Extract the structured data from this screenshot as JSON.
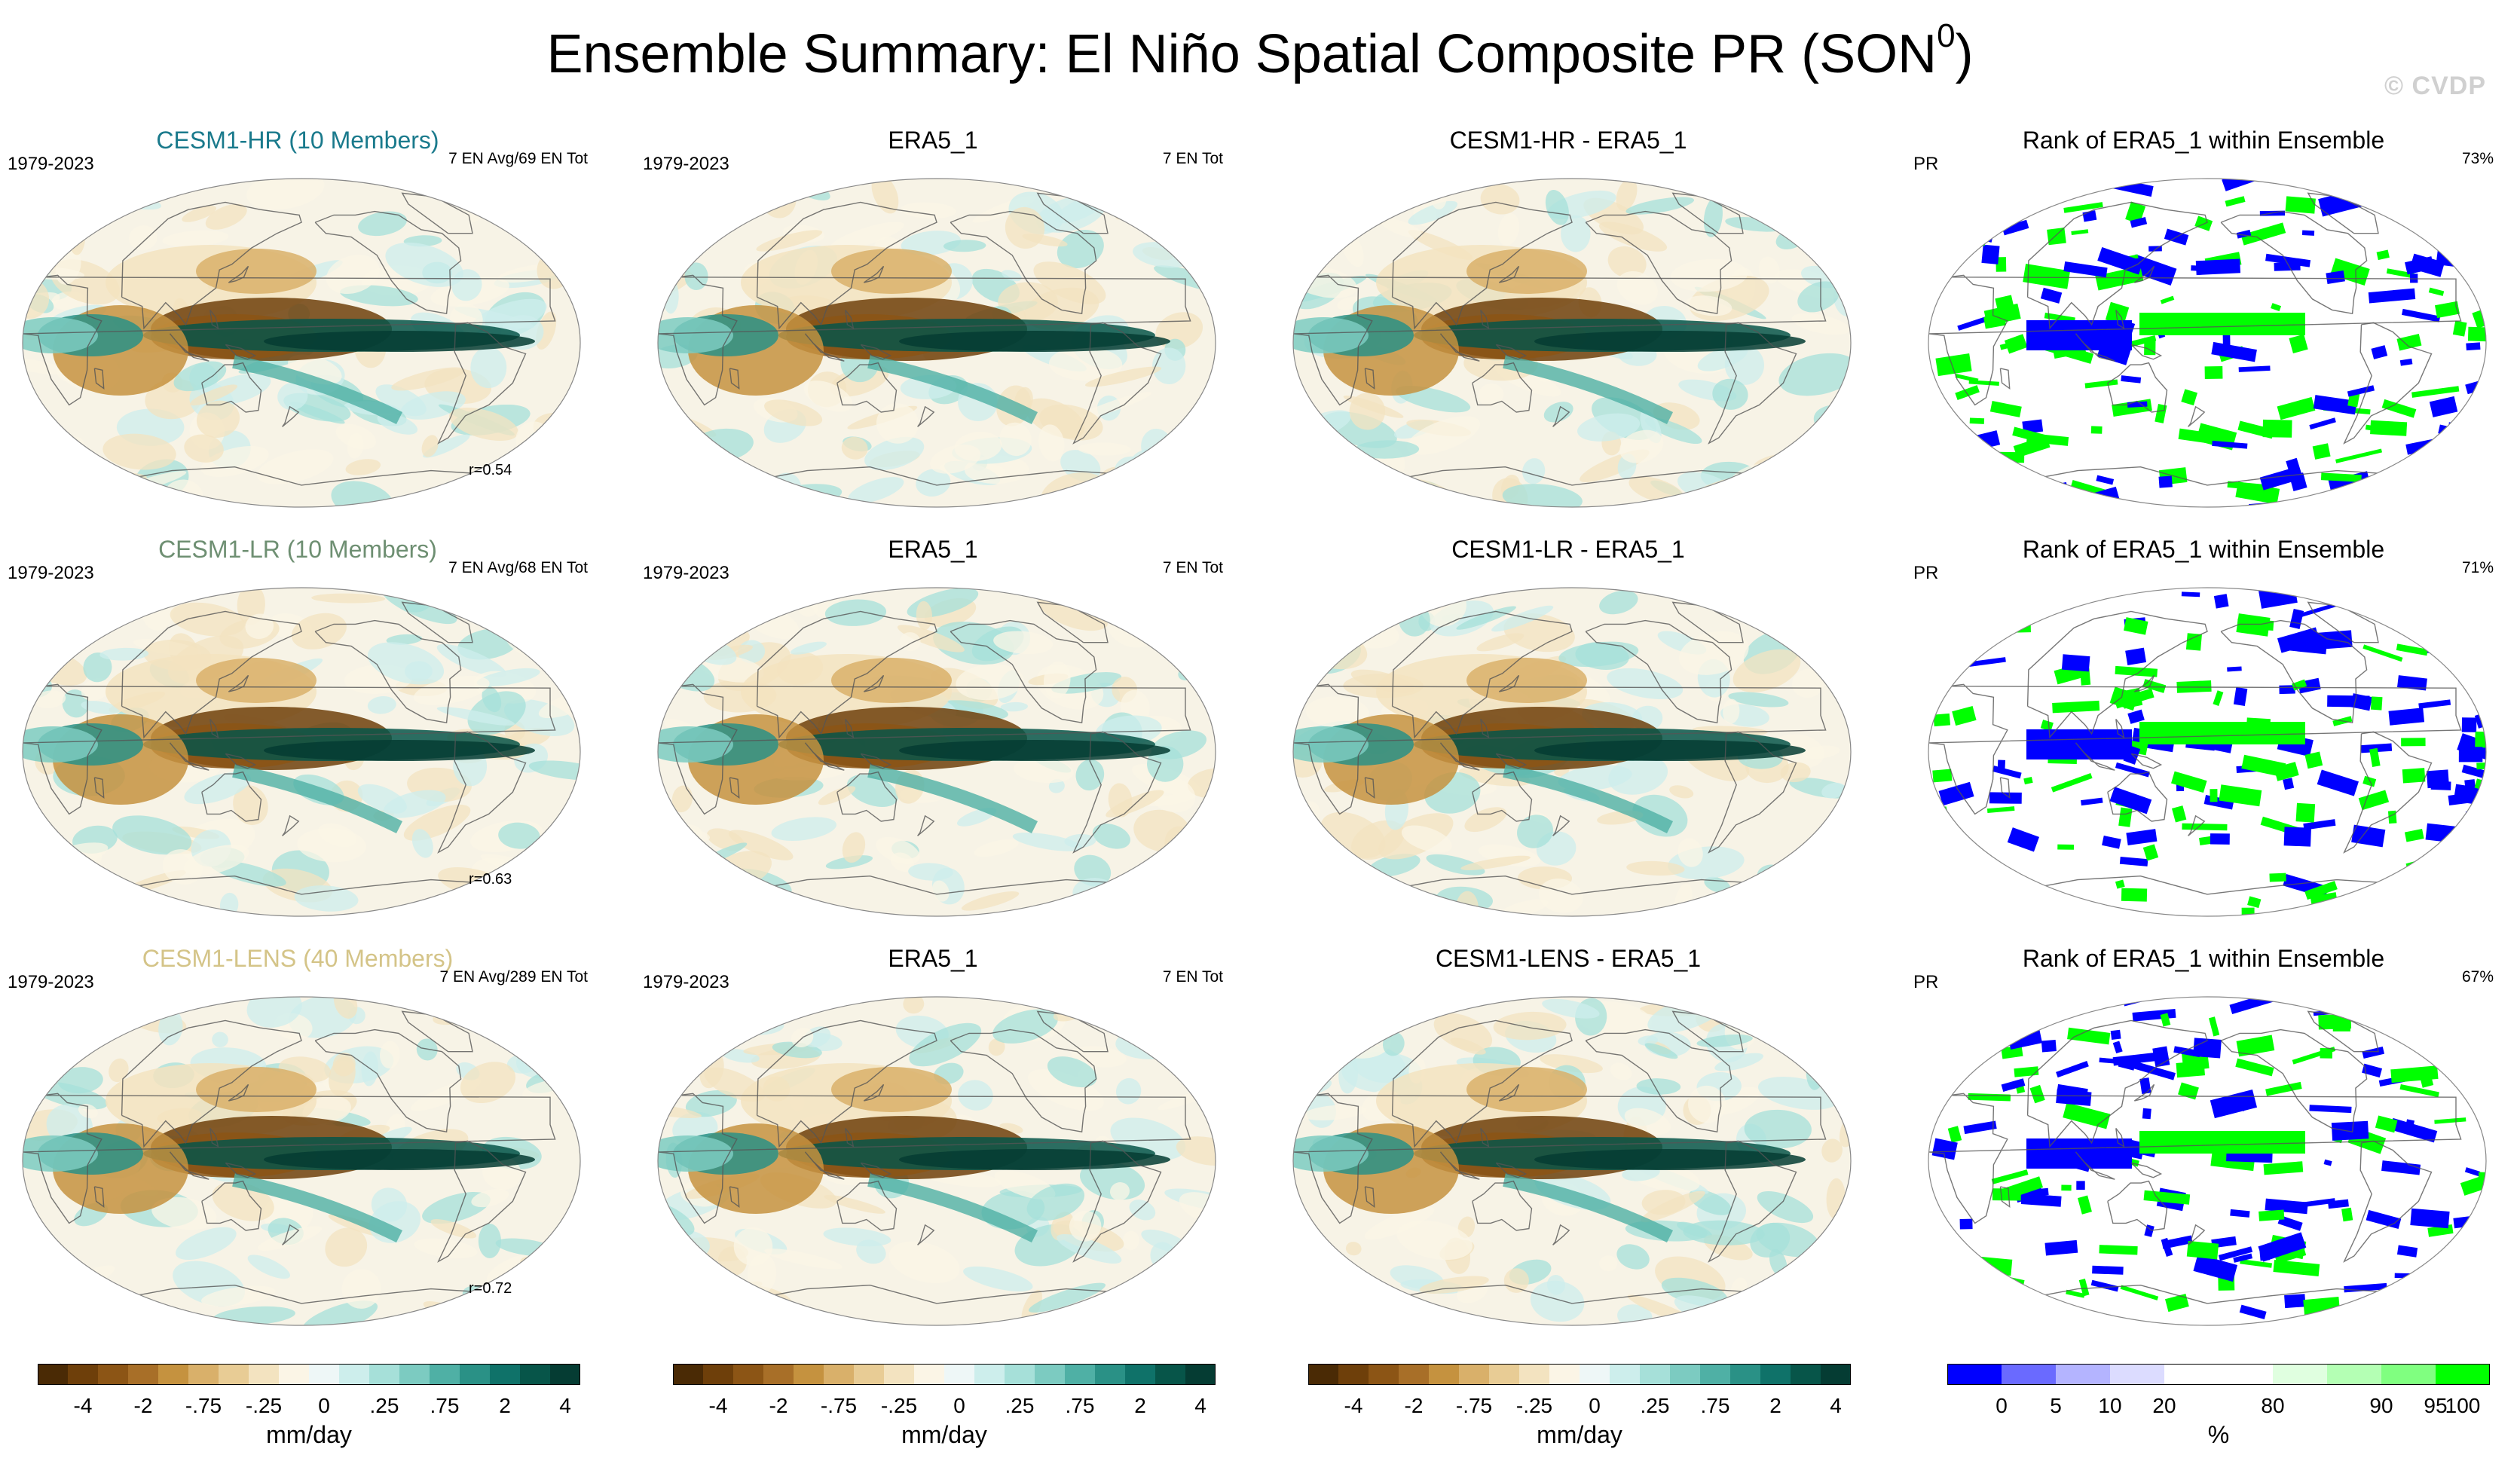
{
  "title": "Ensemble Summary: El Niño Spatial Composite PR (SON",
  "title_superscript": "0",
  "title_close": ")",
  "watermark": "© CVDP",
  "rows": [
    {
      "ensemble": {
        "title": "CESM1-HR (10 Members)",
        "title_color": "#1a7a8c",
        "period": "1979-2023",
        "events": "7 EN Avg/69 EN Tot",
        "corr": "r=0.54"
      },
      "obs": {
        "title": "ERA5_1",
        "period": "1979-2023",
        "events": "7 EN Tot"
      },
      "diff": {
        "title": "CESM1-HR - ERA5_1"
      },
      "rank": {
        "title": "Rank of ERA5_1 within Ensemble",
        "var": "PR",
        "pct": "73%"
      }
    },
    {
      "ensemble": {
        "title": "CESM1-LR (10 Members)",
        "title_color": "#6e8f72",
        "period": "1979-2023",
        "events": "7 EN Avg/68 EN Tot",
        "corr": "r=0.63"
      },
      "obs": {
        "title": "ERA5_1",
        "period": "1979-2023",
        "events": "7 EN Tot"
      },
      "diff": {
        "title": "CESM1-LR - ERA5_1"
      },
      "rank": {
        "title": "Rank of ERA5_1 within Ensemble",
        "var": "PR",
        "pct": "71%"
      }
    },
    {
      "ensemble": {
        "title": "CESM1-LENS (40 Members)",
        "title_color": "#d4c488",
        "period": "1979-2023",
        "events": "7 EN Avg/289 EN Tot",
        "corr": "r=0.72"
      },
      "obs": {
        "title": "ERA5_1",
        "period": "1979-2023",
        "events": "7 EN Tot"
      },
      "diff": {
        "title": "CESM1-LENS - ERA5_1"
      },
      "rank": {
        "title": "Rank of ERA5_1 within Ensemble",
        "var": "PR",
        "pct": "67%"
      }
    }
  ],
  "pr_colorbar": {
    "colors": [
      "#4a2a05",
      "#6e3f0a",
      "#8c5515",
      "#a86f28",
      "#c5923f",
      "#d9b06a",
      "#e8cc95",
      "#f3e3c0",
      "#fbf5e6",
      "#eef7f7",
      "#cdeeec",
      "#a6e0d9",
      "#7ccbc1",
      "#4fb0a5",
      "#2a9186",
      "#0f7269",
      "#075549",
      "#053c33"
    ],
    "ticks": [
      "-4",
      "-2",
      "-.75",
      "-.25",
      "0",
      ".25",
      ".75",
      "2",
      "4"
    ],
    "unit": "mm/day"
  },
  "rank_colorbar": {
    "colors": [
      "#0000ff",
      "#6a6aff",
      "#b4b4ff",
      "#dcdcff",
      "#ffffff",
      "#ffffff",
      "#e0ffe0",
      "#b4ffb4",
      "#80ff80",
      "#00ff00"
    ],
    "ticks": [
      "0",
      "5",
      "10",
      "20",
      "80",
      "90",
      "95",
      "100"
    ],
    "unit": "%"
  }
}
